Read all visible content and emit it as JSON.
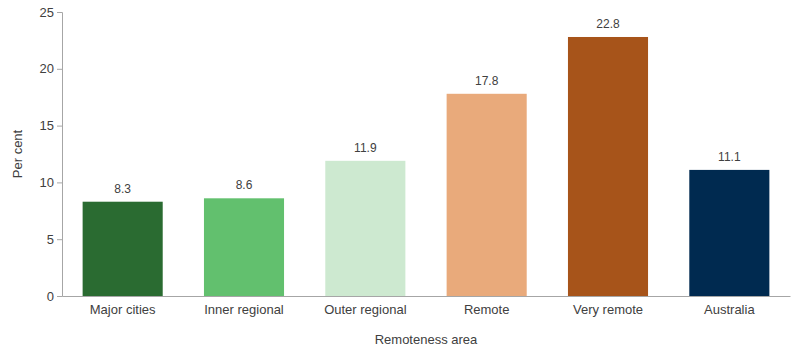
{
  "chart_data": {
    "type": "bar",
    "x_label": "Remoteness area",
    "y_label": "Per cent",
    "categories": [
      "Major cities",
      "Inner regional",
      "Outer regional",
      "Remote",
      "Very remote",
      "Australia"
    ],
    "values": [
      8.3,
      8.6,
      11.9,
      17.8,
      22.8,
      11.1
    ],
    "colors": [
      "#2a6b31",
      "#62c06e",
      "#cde9d0",
      "#e9aa7b",
      "#a7541a",
      "#002a50"
    ],
    "ylim": [
      0,
      25
    ],
    "yticks": [
      0,
      5,
      10,
      15,
      20,
      25
    ],
    "grid": false,
    "data_labels": true
  }
}
